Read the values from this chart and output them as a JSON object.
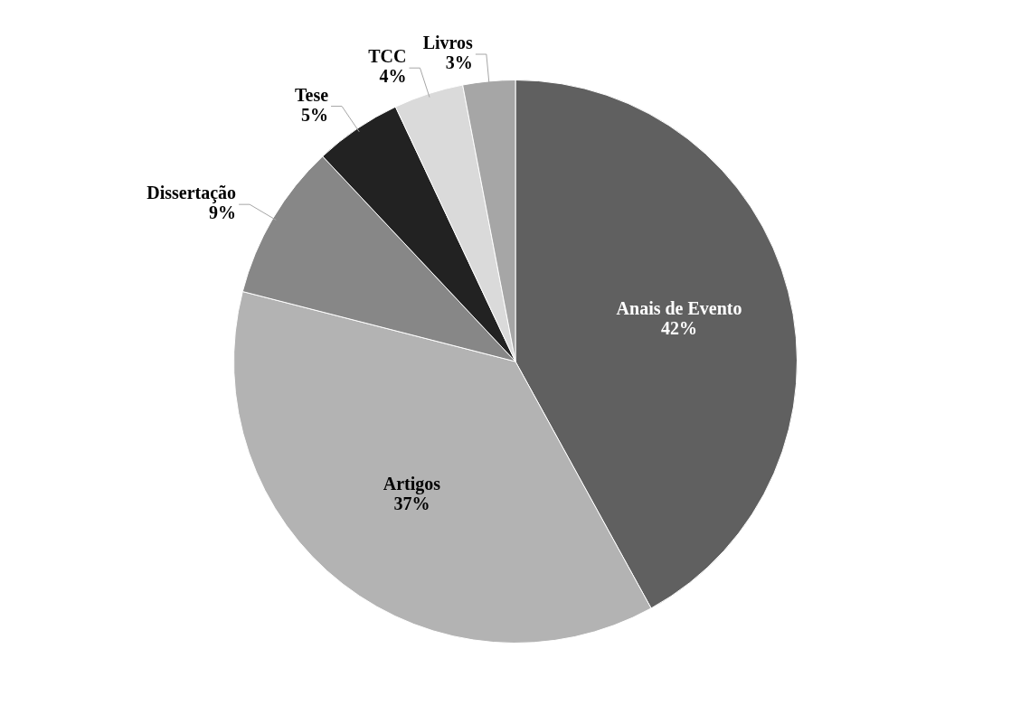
{
  "chart_data": {
    "type": "pie",
    "categories": [
      "Anais de Evento",
      "Artigos",
      "Dissertação",
      "Tese",
      "TCC",
      "Livros"
    ],
    "values": [
      42,
      37,
      9,
      5,
      4,
      3
    ],
    "colors": [
      "#606060",
      "#b3b3b3",
      "#878787",
      "#222222",
      "#dadada",
      "#a6a6a6"
    ],
    "value_labels": [
      "42%",
      "37%",
      "9%",
      "5%",
      "4%",
      "3%"
    ]
  }
}
